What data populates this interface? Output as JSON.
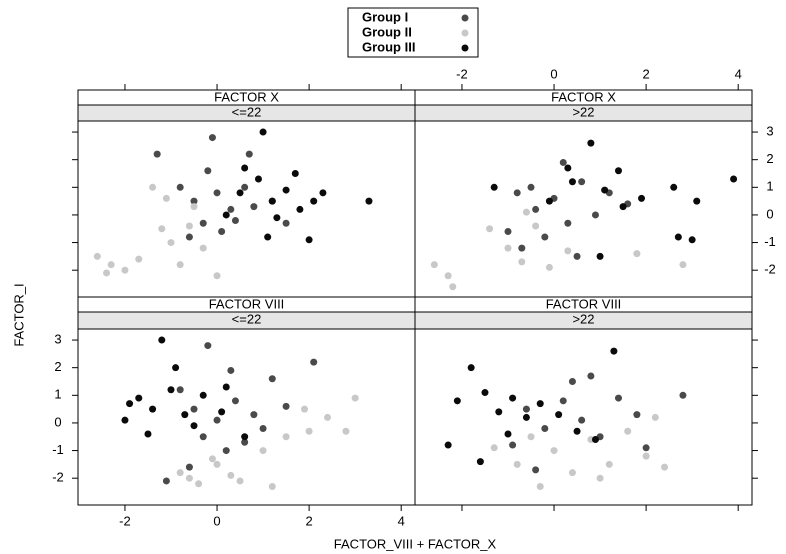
{
  "chart_data": {
    "type": "scatter",
    "xlabel": "FACTOR_VIII + FACTOR_X",
    "ylabel": "FACTOR_I",
    "xlim": [
      -3.02,
      4.3
    ],
    "ylim": [
      -2.97,
      3.4
    ],
    "xticks": [
      -2,
      0,
      2,
      4
    ],
    "yticks": [
      -2,
      -1,
      0,
      1,
      2,
      3
    ],
    "legend_position": "top",
    "series": [
      {
        "name": "Group I",
        "color": "#4a4a4a"
      },
      {
        "name": "Group II",
        "color": "#c8c8c8"
      },
      {
        "name": "Group III",
        "color": "#0a0a0a"
      }
    ],
    "panels": [
      {
        "strips": [
          "FACTOR X",
          "<=22"
        ],
        "groups": [
          {
            "x": [
              -0.5,
              0,
              0.3,
              -0.3,
              0.6,
              -0.8,
              0.1,
              0.8,
              -0.2,
              0.4,
              -0.6,
              1.2,
              -1.3,
              0.7,
              -0.1,
              1.5
            ],
            "y": [
              0.5,
              0.8,
              0.2,
              -0.3,
              1.0,
              1.0,
              -0.6,
              0.3,
              1.6,
              -0.2,
              -0.8,
              0.5,
              2.2,
              2.2,
              2.8,
              -0.3
            ]
          },
          {
            "x": [
              -2.6,
              -2.3,
              -2.0,
              -1.7,
              -2.4,
              -1.2,
              -1.0,
              -0.8,
              -0.6,
              -0.3,
              -1.4,
              -0.5,
              0,
              -1.1
            ],
            "y": [
              -1.5,
              -1.8,
              -2.0,
              -1.6,
              -2.1,
              -0.5,
              -1.0,
              -1.8,
              -0.4,
              -1.2,
              1.0,
              0.3,
              -2.2,
              0.6
            ]
          },
          {
            "x": [
              0.5,
              0.9,
              1.2,
              1.5,
              1.8,
              2.1,
              0.6,
              1.0,
              1.3,
              2.3,
              3.3,
              1.7,
              0.2,
              1.1,
              2.0
            ],
            "y": [
              0.8,
              1.3,
              0.5,
              0.9,
              0.2,
              0.5,
              1.7,
              3.0,
              -0.1,
              0.8,
              0.5,
              1.5,
              0.0,
              -0.8,
              -0.9
            ]
          }
        ]
      },
      {
        "strips": [
          "FACTOR X",
          ">22"
        ],
        "groups": [
          {
            "x": [
              -0.8,
              -0.4,
              0,
              0.3,
              -0.2,
              0.6,
              -1.0,
              0.9,
              1.2,
              -0.5,
              0.2,
              1.6,
              -0.7,
              0.5
            ],
            "y": [
              0.8,
              0.2,
              0.6,
              -0.3,
              -0.8,
              1.2,
              -0.6,
              0.0,
              0.8,
              1.0,
              1.9,
              0.4,
              -1.2,
              -1.5
            ]
          },
          {
            "x": [
              -2.6,
              -2.3,
              -2.2,
              -1.0,
              -0.7,
              -0.4,
              -0.1,
              0.3,
              -1.4,
              2.8,
              1.8,
              -0.6
            ],
            "y": [
              -1.8,
              -2.2,
              -2.6,
              -1.2,
              -1.7,
              -0.4,
              -1.9,
              -1.3,
              -0.5,
              -1.8,
              -1.4,
              0.1
            ]
          },
          {
            "x": [
              -1.3,
              -0.1,
              0.4,
              0.8,
              1.1,
              1.5,
              1.9,
              2.6,
              3.1,
              3.9,
              2.7,
              3.0,
              1.0,
              0.3,
              1.4
            ],
            "y": [
              1.0,
              0.5,
              1.2,
              2.6,
              0.9,
              0.3,
              0.6,
              1.0,
              0.5,
              1.3,
              -0.8,
              -0.9,
              -1.5,
              1.7,
              1.6
            ]
          }
        ]
      },
      {
        "strips": [
          "FACTOR VIII",
          "<=22"
        ],
        "groups": [
          {
            "x": [
              -0.5,
              0,
              0.4,
              -0.3,
              0.8,
              -0.8,
              0.2,
              1.0,
              -0.2,
              1.5,
              0.6,
              -1.1,
              2.1,
              -0.6,
              1.2,
              0.3
            ],
            "y": [
              0.5,
              0.1,
              0.8,
              -0.5,
              0.3,
              1.2,
              -1.0,
              -0.2,
              2.8,
              0.6,
              -0.7,
              -2.1,
              2.2,
              -1.6,
              1.6,
              1.9
            ]
          },
          {
            "x": [
              -0.8,
              -0.4,
              0,
              0.5,
              1.0,
              1.5,
              2.0,
              2.4,
              3.0,
              2.8,
              0.3,
              -0.1,
              1.2,
              1.9,
              -0.6
            ],
            "y": [
              -1.8,
              -2.2,
              -1.5,
              -2.1,
              -1.0,
              -0.5,
              -0.3,
              0.2,
              0.9,
              -0.3,
              -1.9,
              -1.3,
              -2.3,
              0.5,
              -2.0
            ]
          },
          {
            "x": [
              -2.0,
              -1.7,
              -1.4,
              -1.0,
              -0.7,
              -0.3,
              0.1,
              -1.2,
              -0.5,
              0.6,
              -1.9,
              -0.9,
              -1.5,
              0.2
            ],
            "y": [
              0.1,
              0.9,
              0.5,
              1.2,
              0.3,
              1.0,
              0.4,
              3.0,
              -0.1,
              -0.5,
              0.7,
              2.0,
              -0.4,
              1.3
            ]
          }
        ]
      },
      {
        "strips": [
          "FACTOR VIII",
          ">22"
        ],
        "groups": [
          {
            "x": [
              -0.6,
              -0.2,
              0.2,
              0.6,
              1.0,
              1.4,
              -0.9,
              0.4,
              1.8,
              -0.4,
              0.8,
              2.0,
              2.8
            ],
            "y": [
              0.5,
              -0.2,
              0.8,
              0.1,
              -0.5,
              0.9,
              -0.8,
              1.5,
              0.3,
              -1.7,
              1.7,
              -0.9,
              1.0
            ]
          },
          {
            "x": [
              -0.8,
              -0.3,
              0,
              0.4,
              0.8,
              1.2,
              1.6,
              2.0,
              2.4,
              -0.5,
              1.0,
              2.2,
              -1.3
            ],
            "y": [
              -1.5,
              -2.3,
              -1.0,
              -1.8,
              -0.6,
              -1.5,
              -0.3,
              -1.2,
              -1.6,
              -0.5,
              -2.0,
              0.2,
              -0.9
            ]
          },
          {
            "x": [
              -2.1,
              -1.8,
              -1.5,
              -1.2,
              -0.9,
              -0.6,
              -0.3,
              0.1,
              -1.0,
              0.5,
              1.3,
              -2.3,
              -1.6,
              0.9
            ],
            "y": [
              0.8,
              2.0,
              1.1,
              0.4,
              0.9,
              0.2,
              0.7,
              0.3,
              -0.4,
              -0.3,
              2.6,
              -0.8,
              -1.4,
              -0.6
            ]
          }
        ]
      }
    ]
  }
}
